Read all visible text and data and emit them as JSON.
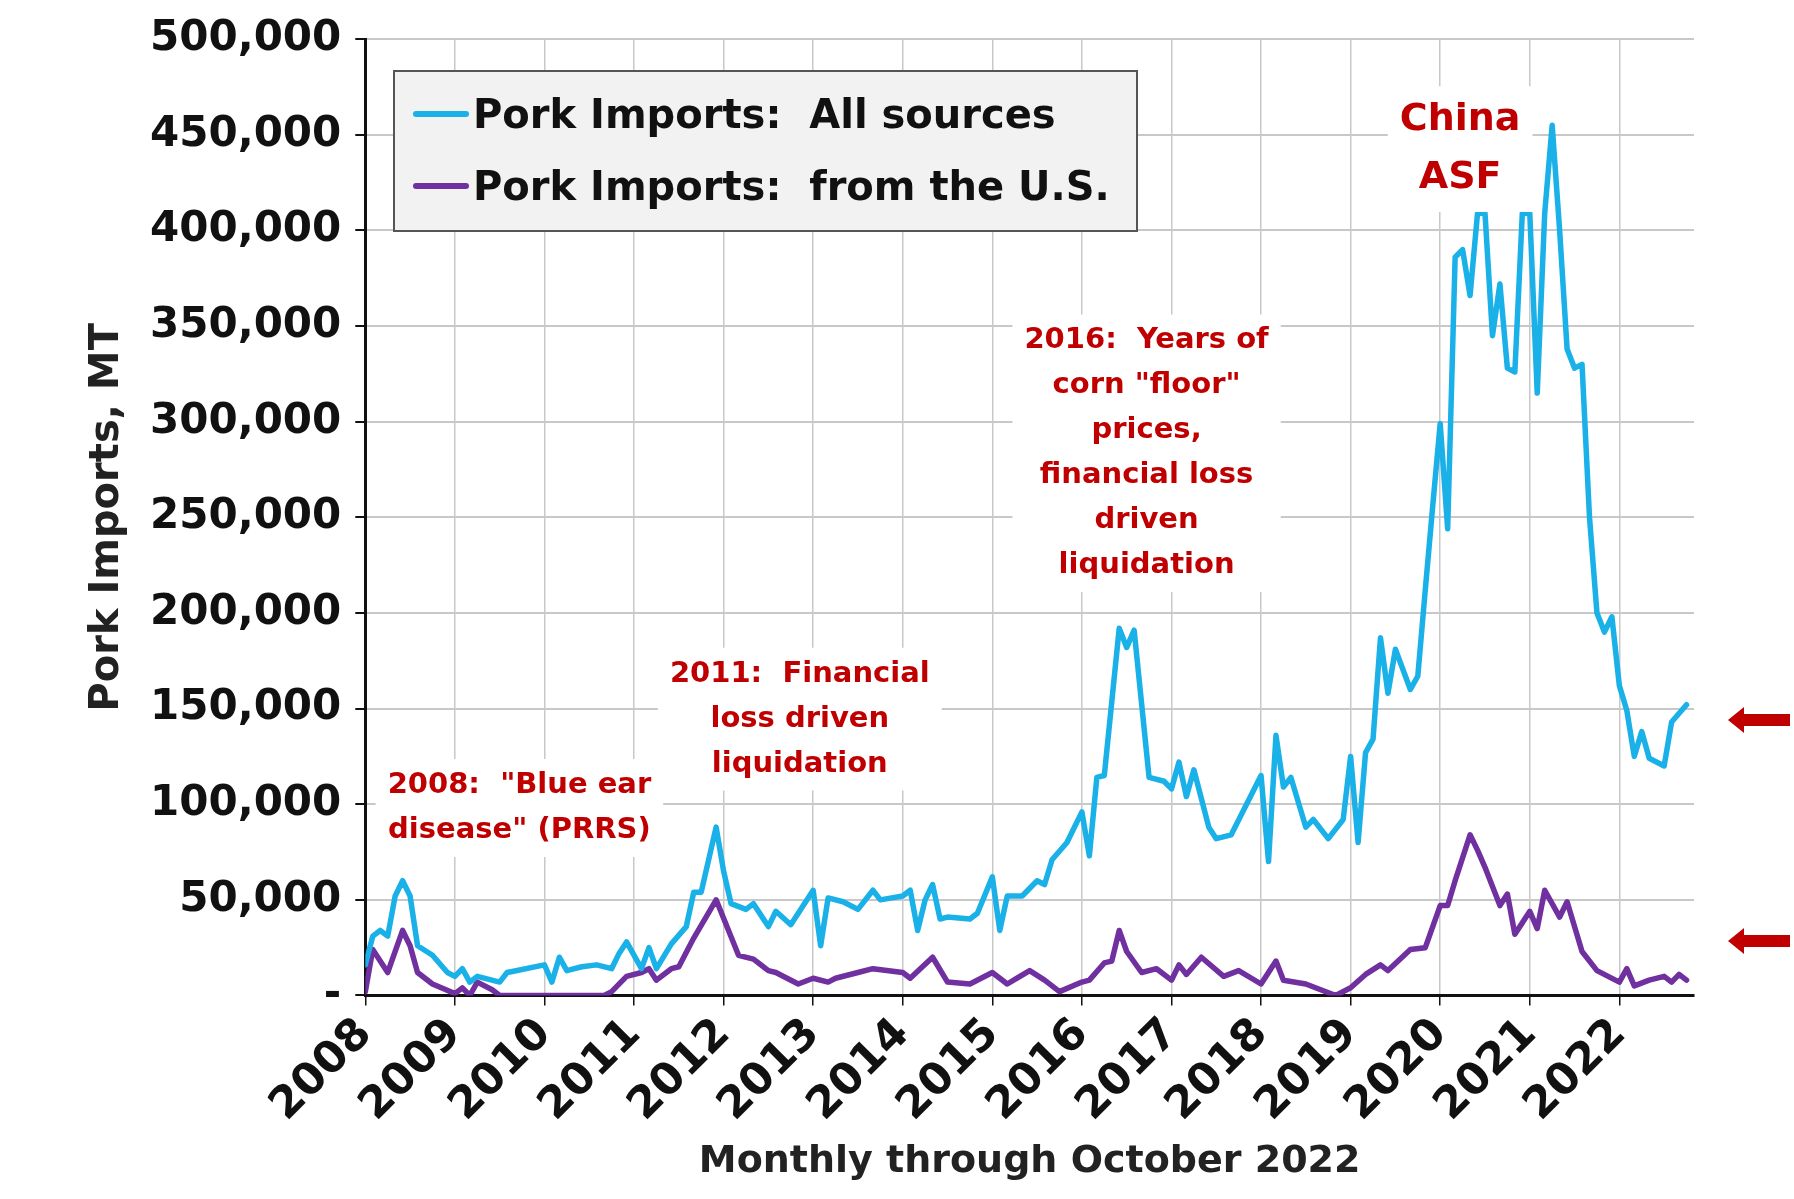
{
  "chart_data": {
    "type": "line",
    "xlabel": "Monthly through October 2022",
    "ylabel": "Pork Imports, MT",
    "xlim": [
      "2008-01",
      "2022-11"
    ],
    "xticks": [
      "2008",
      "2009",
      "2010",
      "2011",
      "2012",
      "2013",
      "2014",
      "2015",
      "2016",
      "2017",
      "2018",
      "2019",
      "2020",
      "2021",
      "2022"
    ],
    "ylim": [
      0,
      500000
    ],
    "yticks": [
      {
        "value": 0,
        "label": "-"
      },
      {
        "value": 50000,
        "label": "50,000"
      },
      {
        "value": 100000,
        "label": "100,000"
      },
      {
        "value": 150000,
        "label": "150,000"
      },
      {
        "value": 200000,
        "label": "200,000"
      },
      {
        "value": 250000,
        "label": "250,000"
      },
      {
        "value": 300000,
        "label": "300,000"
      },
      {
        "value": 350000,
        "label": "350,000"
      },
      {
        "value": 400000,
        "label": "400,000"
      },
      {
        "value": 450000,
        "label": "450,000"
      },
      {
        "value": 500000,
        "label": "500,000"
      }
    ],
    "grid": true,
    "legend": "top left",
    "marker": "none",
    "line_style": "solid",
    "series": [
      {
        "name": "Pork Imports:  All sources",
        "color": "#1ab0e8",
        "x": [
          "2008-01",
          "2008-02",
          "2008-03",
          "2008-04",
          "2008-05",
          "2008-06",
          "2008-07",
          "2008-08",
          "2008-10",
          "2008-12",
          "2009-01",
          "2009-02",
          "2009-03",
          "2009-04",
          "2009-07",
          "2009-08",
          "2010-01",
          "2010-02",
          "2010-03",
          "2010-04",
          "2010-06",
          "2010-08",
          "2010-10",
          "2010-11",
          "2010-12",
          "2011-02",
          "2011-03",
          "2011-04",
          "2011-06",
          "2011-08",
          "2011-09",
          "2011-10",
          "2011-12",
          "2012-01",
          "2012-02",
          "2012-04",
          "2012-05",
          "2012-07",
          "2012-08",
          "2012-10",
          "2013-01",
          "2013-02",
          "2013-03",
          "2013-05",
          "2013-07",
          "2013-09",
          "2013-10",
          "2014-01",
          "2014-02",
          "2014-03",
          "2014-04",
          "2014-05",
          "2014-06",
          "2014-07",
          "2014-10",
          "2014-11",
          "2015-01",
          "2015-02",
          "2015-03",
          "2015-05",
          "2015-07",
          "2015-08",
          "2015-09",
          "2015-11",
          "2016-01",
          "2016-02",
          "2016-03",
          "2016-04",
          "2016-06",
          "2016-07",
          "2016-08",
          "2016-10",
          "2016-12",
          "2017-01",
          "2017-02",
          "2017-03",
          "2017-04",
          "2017-06",
          "2017-07",
          "2017-09",
          "2018-01",
          "2018-02",
          "2018-03",
          "2018-04",
          "2018-05",
          "2018-07",
          "2018-08",
          "2018-10",
          "2018-12",
          "2019-01",
          "2019-02",
          "2019-03",
          "2019-04",
          "2019-05",
          "2019-06",
          "2019-07",
          "2019-09",
          "2019-10",
          "2019-11",
          "2019-12",
          "2020-01",
          "2020-02",
          "2020-03",
          "2020-04",
          "2020-05",
          "2020-06",
          "2020-07",
          "2020-08",
          "2020-09",
          "2020-10",
          "2020-11",
          "2020-12",
          "2021-01",
          "2021-02",
          "2021-03",
          "2021-04",
          "2021-05",
          "2021-06",
          "2021-07",
          "2021-08",
          "2021-09",
          "2021-10",
          "2021-11",
          "2021-12",
          "2022-01",
          "2022-02",
          "2022-03",
          "2022-04",
          "2022-05",
          "2022-07",
          "2022-08",
          "2022-10"
        ],
        "values": [
          16000,
          31000,
          34000,
          31000,
          52000,
          60000,
          52000,
          26000,
          21000,
          12000,
          10000,
          14000,
          7000,
          10000,
          7000,
          12000,
          16000,
          7000,
          20000,
          13000,
          15000,
          16000,
          14000,
          22000,
          28000,
          14000,
          25000,
          14000,
          27000,
          36000,
          54000,
          54000,
          88000,
          65000,
          48000,
          45000,
          48000,
          36000,
          44000,
          37000,
          55000,
          26000,
          51000,
          49000,
          45000,
          55000,
          50000,
          52000,
          55000,
          34000,
          50000,
          58000,
          40000,
          41000,
          40000,
          43000,
          62000,
          34000,
          52000,
          52000,
          60000,
          58000,
          71000,
          80000,
          96000,
          73000,
          114000,
          115000,
          192000,
          182000,
          191000,
          114000,
          112000,
          108000,
          122000,
          104000,
          118000,
          88000,
          82000,
          84000,
          115000,
          70000,
          136000,
          109000,
          114000,
          88000,
          92000,
          82000,
          92000,
          125000,
          80000,
          127000,
          134000,
          187000,
          158000,
          181000,
          160000,
          167000,
          212000,
          256000,
          299000,
          244000,
          386000,
          390000,
          366000,
          409000,
          409000,
          345000,
          372000,
          328000,
          326000,
          409000,
          409000,
          315000,
          409000,
          455000,
          400000,
          338000,
          328000,
          330000,
          250000,
          200000,
          190000,
          198000,
          162000,
          149000,
          125000,
          138000,
          124000,
          120000,
          143000,
          152000
        ]
      },
      {
        "name": "Pork Imports:  from the U.S.",
        "color": "#7030a0",
        "x": [
          "2008-01",
          "2008-02",
          "2008-04",
          "2008-06",
          "2008-07",
          "2008-08",
          "2008-10",
          "2009-01",
          "2009-02",
          "2009-03",
          "2009-04",
          "2009-06",
          "2009-07",
          "2010-09",
          "2010-10",
          "2010-12",
          "2011-02",
          "2011-03",
          "2011-04",
          "2011-06",
          "2011-07",
          "2011-09",
          "2011-12",
          "2012-03",
          "2012-05",
          "2012-07",
          "2012-08",
          "2012-11",
          "2013-01",
          "2013-03",
          "2013-04",
          "2013-07",
          "2013-09",
          "2014-01",
          "2014-02",
          "2014-05",
          "2014-07",
          "2014-10",
          "2015-01",
          "2015-03",
          "2015-06",
          "2015-08",
          "2015-10",
          "2016-01",
          "2016-02",
          "2016-04",
          "2016-05",
          "2016-06",
          "2016-07",
          "2016-09",
          "2016-11",
          "2017-01",
          "2017-02",
          "2017-03",
          "2017-05",
          "2017-08",
          "2017-10",
          "2018-01",
          "2018-03",
          "2018-04",
          "2018-07",
          "2018-11",
          "2019-01",
          "2019-03",
          "2019-05",
          "2019-06",
          "2019-09",
          "2019-11",
          "2020-01",
          "2020-02",
          "2020-03",
          "2020-05",
          "2020-06",
          "2020-07",
          "2020-09",
          "2020-10",
          "2020-11",
          "2021-01",
          "2021-02",
          "2021-03",
          "2021-05",
          "2021-06",
          "2021-08",
          "2021-10",
          "2022-01",
          "2022-02",
          "2022-03",
          "2022-05",
          "2022-07",
          "2022-08",
          "2022-09",
          "2022-10"
        ],
        "values": [
          2000,
          24000,
          12000,
          34000,
          26000,
          12000,
          6000,
          1000,
          4000,
          0,
          7000,
          3000,
          0,
          0,
          2000,
          10000,
          12000,
          14000,
          8000,
          14000,
          15000,
          30000,
          50000,
          21000,
          19000,
          13000,
          12000,
          6000,
          9000,
          7000,
          9000,
          12000,
          14000,
          12000,
          9000,
          20000,
          7000,
          6000,
          12000,
          6000,
          13000,
          8000,
          2000,
          7000,
          8000,
          17000,
          18000,
          34000,
          23000,
          12000,
          14000,
          8000,
          16000,
          11000,
          20000,
          10000,
          13000,
          6000,
          18000,
          8000,
          6000,
          0,
          4000,
          11000,
          16000,
          13000,
          24000,
          25000,
          47000,
          47000,
          60000,
          84000,
          76000,
          67000,
          47000,
          53000,
          32000,
          44000,
          35000,
          55000,
          41000,
          49000,
          23000,
          13000,
          7000,
          14000,
          5000,
          8000,
          10000,
          7000,
          11000,
          8000
        ]
      }
    ],
    "annotations": [
      "2008:  \"Blue ear\ndisease\" (PRRS)",
      "2011:  Financial\nloss driven\nliquidation",
      "2016:  Years of\ncorn \"floor\"\nprices,\nfinancial loss\ndriven\nliquidation",
      "China\nASF"
    ]
  }
}
